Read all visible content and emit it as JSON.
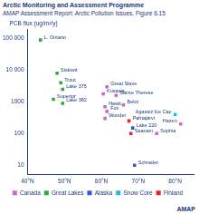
{
  "chart_data": {
    "type": "scatter",
    "title": "Arctic Monitoring and Assessment Programme",
    "subtitle": "AMAP Assessment Report: Arctic Pollution Issues, Figure 6.15",
    "y_label": "PCB flux (ug/m²/y)",
    "annotation": "AMAP",
    "log": "y",
    "grid": false,
    "legend": "bottom",
    "xlim": [
      40,
      85
    ],
    "xticks": [
      {
        "value": 40,
        "label": "40°N"
      },
      {
        "value": 50,
        "label": "50°N"
      },
      {
        "value": 60,
        "label": "60°N"
      },
      {
        "value": 70,
        "label": "70°N"
      },
      {
        "value": 80,
        "label": "80°N"
      }
    ],
    "ylim": [
      5,
      200000
    ],
    "yticks": [
      10,
      100,
      1000,
      {
        "value": 10000,
        "label": "10 000"
      },
      {
        "value": 100000,
        "label": "100 000"
      }
    ],
    "series": [
      {
        "name": "Canada",
        "color": "#cc66cc",
        "marker": "square",
        "x": [
          61.5,
          60.5,
          64,
          61,
          61.5,
          66,
          61,
          75,
          81.5
        ],
        "values": [
          3000,
          1800,
          1600,
          700,
          500,
          800,
          300,
          100,
          200
        ],
        "labels": [
          "Great Slave",
          "Kusawa",
          "Sainte Therese",
          "Hawk",
          "Fox",
          "Belot",
          "Wonder",
          "Sophia",
          "Hazen"
        ]
      },
      {
        "name": "Great Lakes",
        "color": "#33aa33",
        "marker": "square",
        "x": [
          43.5,
          48,
          49,
          49.5,
          47,
          49.5
        ],
        "values": [
          90000,
          8000,
          4000,
          2500,
          1200,
          900
        ],
        "labels": [
          "L. Ontario",
          "Siskiwit",
          "Trout",
          "Lake 375",
          "Superior",
          "Lake 382"
        ]
      },
      {
        "name": "Alaska",
        "color": "#3355dd",
        "marker": "square",
        "x": [
          68.5,
          69
        ],
        "values": [
          150,
          10
        ],
        "labels": [
          "Lake 220",
          "Schrader"
        ]
      },
      {
        "name": "Snow Core",
        "color": "#22bbdd",
        "marker": "square",
        "x": [
          80
        ],
        "values": [
          400
        ],
        "labels": [
          "Agassiz Ice Cap"
        ]
      },
      {
        "name": "Finland",
        "color": "#ee2222",
        "marker": "square",
        "x": [
          67.5,
          68
        ],
        "values": [
          250,
          100
        ],
        "labels": [
          "Pahtajärvi",
          "Saanam"
        ]
      }
    ]
  }
}
